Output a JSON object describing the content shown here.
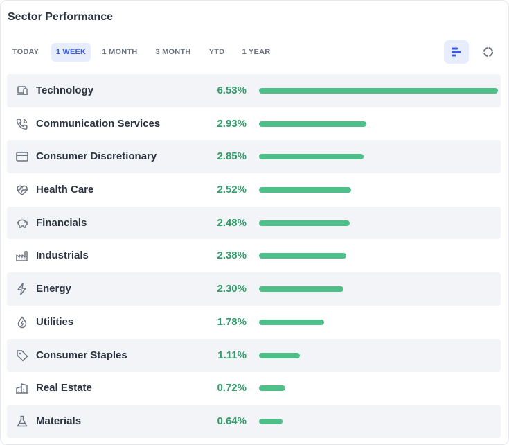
{
  "header": {
    "title": "Sector Performance"
  },
  "tabs": [
    "TODAY",
    "1 WEEK",
    "1 MONTH",
    "3 MONTH",
    "YTD",
    "1 YEAR"
  ],
  "active_tab": "1 WEEK",
  "view_toggle": {
    "active": "bar-chart-view",
    "options": [
      "bar-chart-view",
      "donut-chart-view"
    ]
  },
  "colors": {
    "accent": "#3b5bdb",
    "positive": "#2f9e6a",
    "bar": "#4fbf8a"
  },
  "sectors": [
    {
      "name": "Technology",
      "value": "6.53%",
      "pct": 6.53,
      "icon": "laptop-icon"
    },
    {
      "name": "Communication Services",
      "value": "2.93%",
      "pct": 2.93,
      "icon": "phone-icon"
    },
    {
      "name": "Consumer Discretionary",
      "value": "2.85%",
      "pct": 2.85,
      "icon": "credit-card-icon"
    },
    {
      "name": "Health Care",
      "value": "2.52%",
      "pct": 2.52,
      "icon": "heartbeat-icon"
    },
    {
      "name": "Financials",
      "value": "2.48%",
      "pct": 2.48,
      "icon": "piggy-bank-icon"
    },
    {
      "name": "Industrials",
      "value": "2.38%",
      "pct": 2.38,
      "icon": "factory-icon"
    },
    {
      "name": "Energy",
      "value": "2.30%",
      "pct": 2.3,
      "icon": "lightning-icon"
    },
    {
      "name": "Utilities",
      "value": "1.78%",
      "pct": 1.78,
      "icon": "water-drop-icon"
    },
    {
      "name": "Consumer Staples",
      "value": "1.11%",
      "pct": 1.11,
      "icon": "tag-icon"
    },
    {
      "name": "Real Estate",
      "value": "0.72%",
      "pct": 0.72,
      "icon": "building-icon"
    },
    {
      "name": "Materials",
      "value": "0.64%",
      "pct": 0.64,
      "icon": "flask-icon"
    }
  ]
}
